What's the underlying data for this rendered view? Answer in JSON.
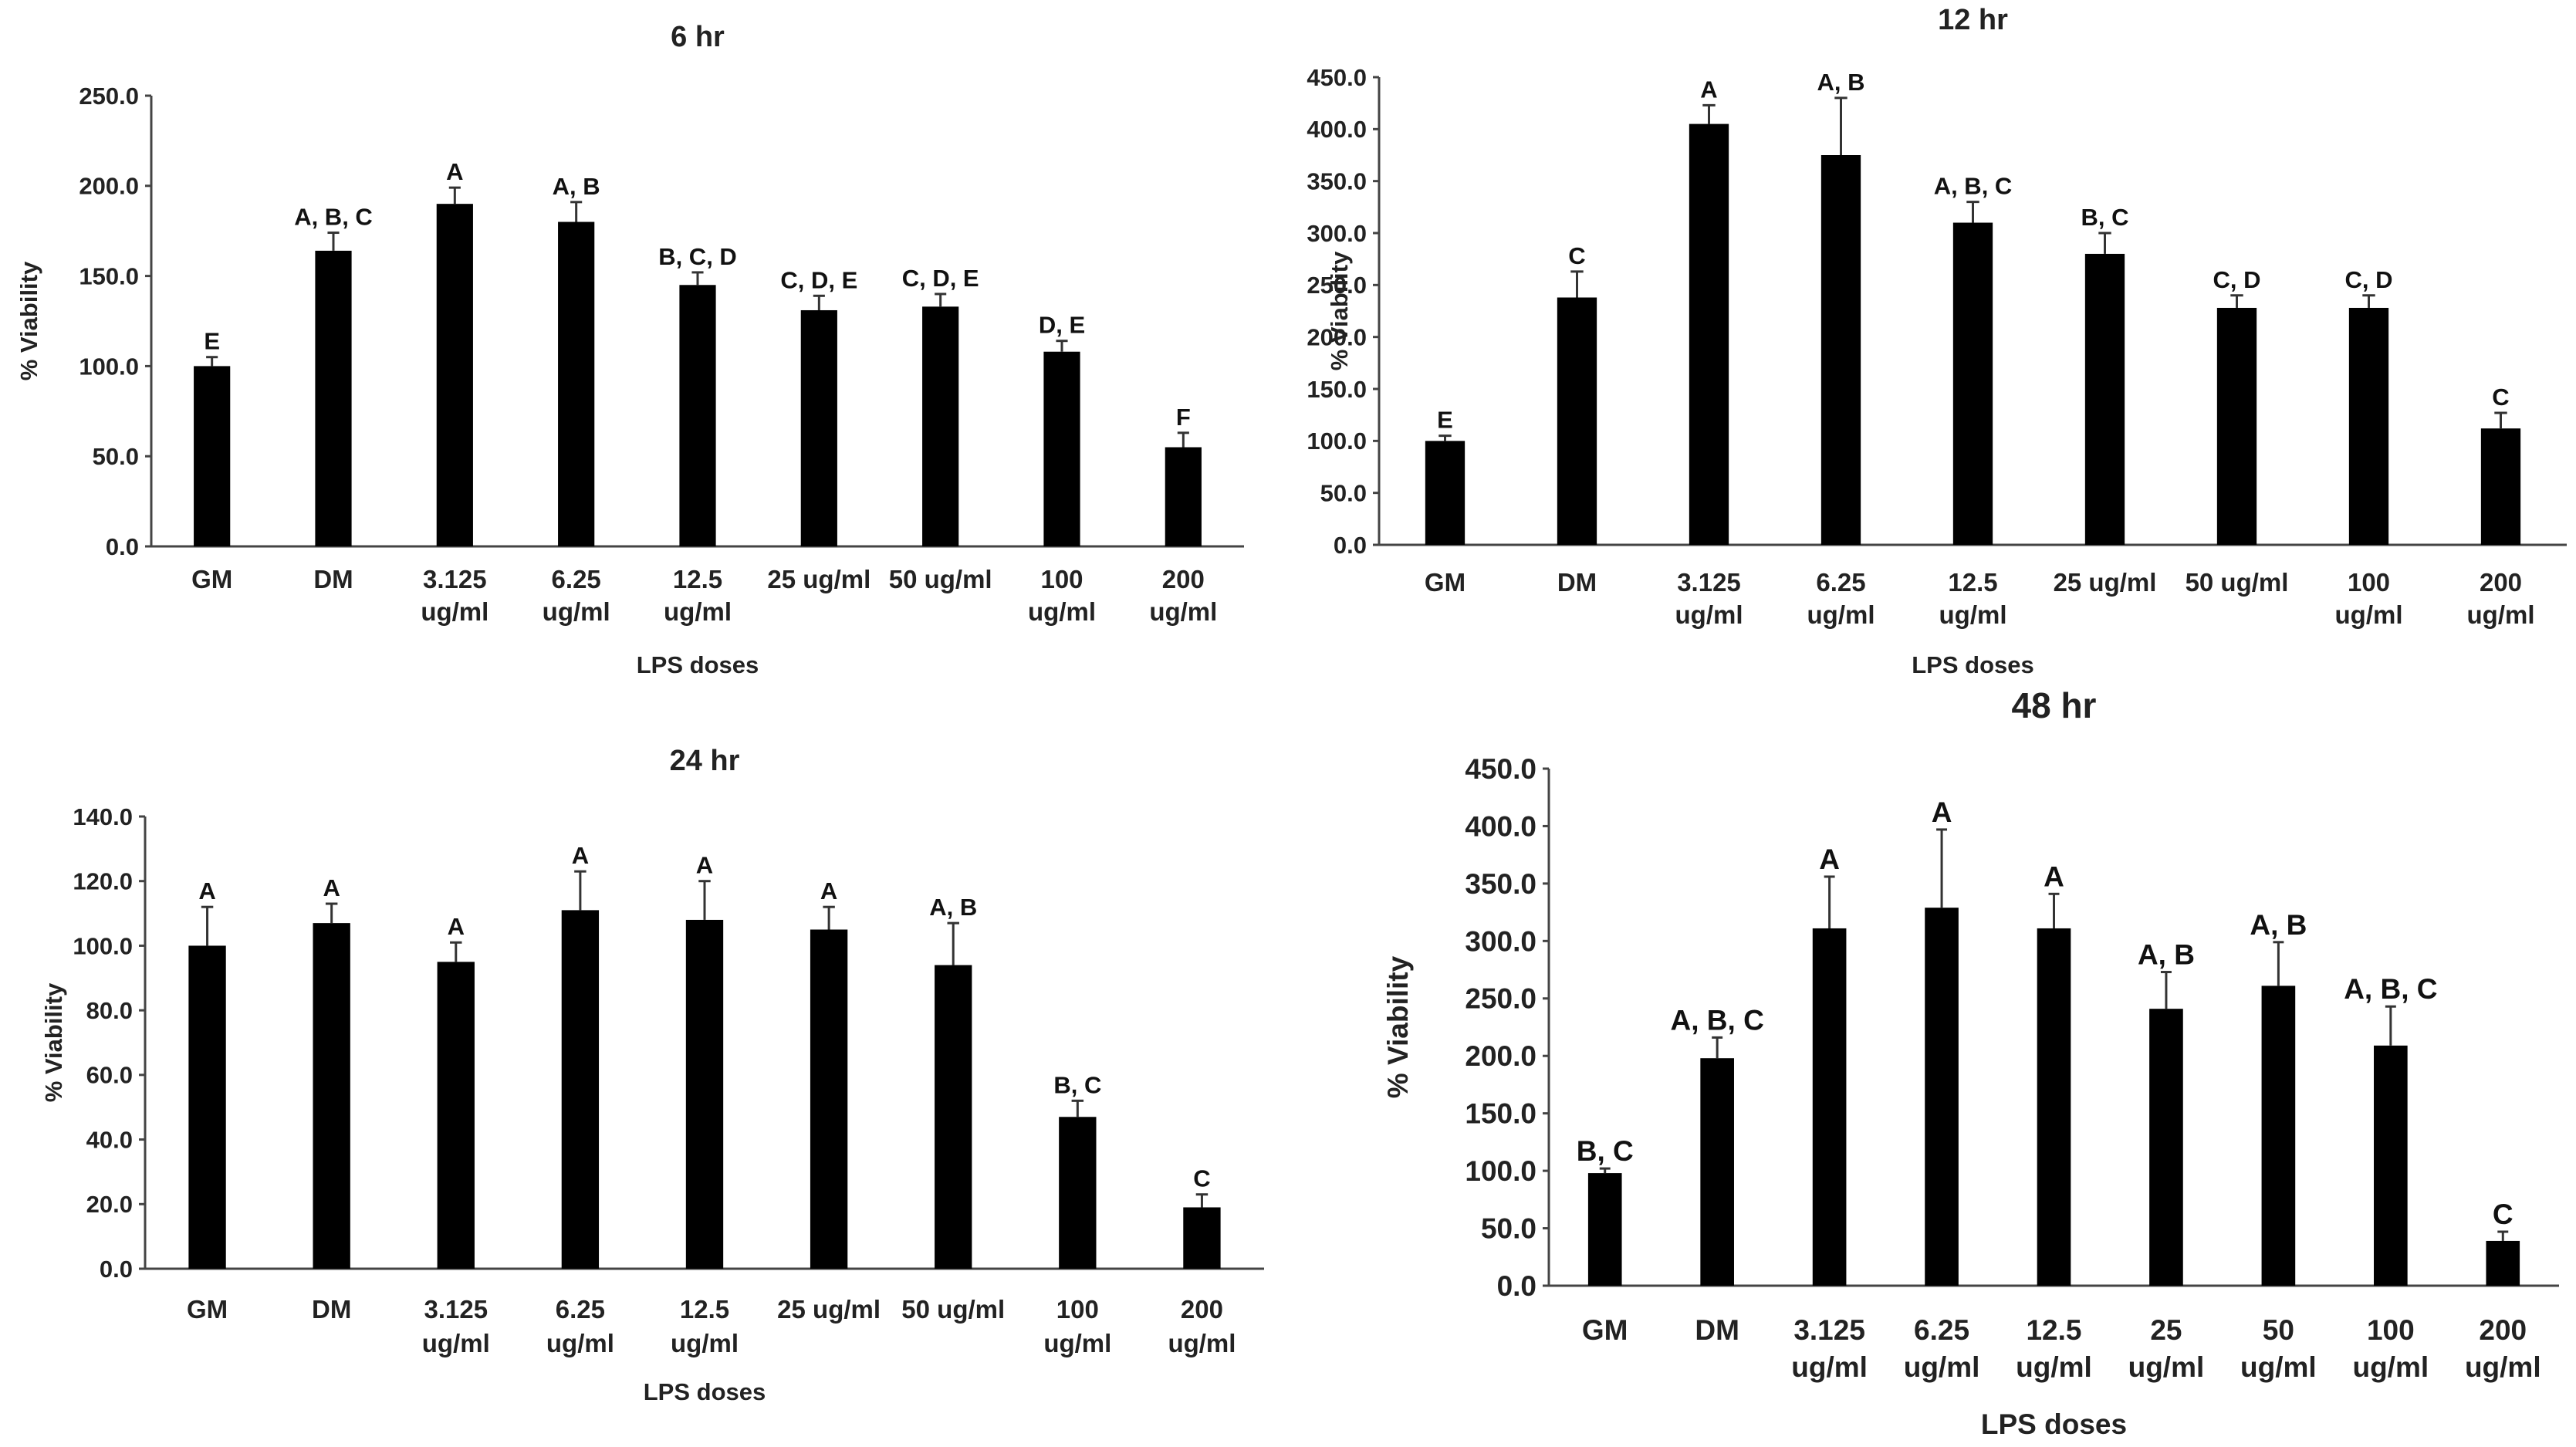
{
  "chart_data": [
    {
      "type": "bar",
      "title": "6 hr",
      "xlabel": "LPS doses",
      "ylabel": "% Viability",
      "ylim": [
        0,
        250
      ],
      "yticks": [
        "0.0",
        "50.0",
        "100.0",
        "150.0",
        "200.0",
        "250.0"
      ],
      "categories": [
        [
          "GM"
        ],
        [
          "DM"
        ],
        [
          "3.125",
          "ug/ml"
        ],
        [
          "6.25",
          "ug/ml"
        ],
        [
          "12.5",
          "ug/ml"
        ],
        [
          "25 ug/ml"
        ],
        [
          "50 ug/ml"
        ],
        [
          "100",
          "ug/ml"
        ],
        [
          "200",
          "ug/ml"
        ]
      ],
      "values": [
        100,
        164,
        190,
        180,
        145,
        131,
        133,
        108,
        55
      ],
      "errors": [
        5,
        10,
        9,
        11,
        7,
        8,
        7,
        6,
        8
      ],
      "significance": [
        "E",
        "A, B, C",
        "A",
        "A, B",
        "B, C, D",
        "C, D, E",
        "C, D, E",
        "D, E",
        "F"
      ]
    },
    {
      "type": "bar",
      "title": "12 hr",
      "xlabel": "LPS doses",
      "ylabel": "% Viability",
      "ylim": [
        0,
        450
      ],
      "yticks": [
        "0.0",
        "50.0",
        "100.0",
        "150.0",
        "200.0",
        "250.0",
        "300.0",
        "350.0",
        "400.0",
        "450.0"
      ],
      "categories": [
        [
          "GM"
        ],
        [
          "DM"
        ],
        [
          "3.125",
          "ug/ml"
        ],
        [
          "6.25",
          "ug/ml"
        ],
        [
          "12.5",
          "ug/ml"
        ],
        [
          "25 ug/ml"
        ],
        [
          "50 ug/ml"
        ],
        [
          "100",
          "ug/ml"
        ],
        [
          "200",
          "ug/ml"
        ]
      ],
      "values": [
        100,
        238,
        405,
        375,
        310,
        280,
        228,
        228,
        112
      ],
      "errors": [
        5,
        25,
        18,
        55,
        20,
        20,
        12,
        12,
        15
      ],
      "significance": [
        "E",
        "C",
        "A",
        "A, B",
        "A, B, C",
        "B, C",
        "C, D",
        "C, D",
        "C"
      ]
    },
    {
      "type": "bar",
      "title": "24 hr",
      "xlabel": "LPS doses",
      "ylabel": "% Viability",
      "ylim": [
        0,
        140
      ],
      "yticks": [
        "0.0",
        "20.0",
        "40.0",
        "60.0",
        "80.0",
        "100.0",
        "120.0",
        "140.0"
      ],
      "categories": [
        [
          "GM"
        ],
        [
          "DM"
        ],
        [
          "3.125",
          "ug/ml"
        ],
        [
          "6.25",
          "ug/ml"
        ],
        [
          "12.5",
          "ug/ml"
        ],
        [
          "25 ug/ml"
        ],
        [
          "50 ug/ml"
        ],
        [
          "100",
          "ug/ml"
        ],
        [
          "200",
          "ug/ml"
        ]
      ],
      "values": [
        100,
        107,
        95,
        111,
        108,
        105,
        94,
        47,
        19
      ],
      "errors": [
        12,
        6,
        6,
        12,
        12,
        7,
        13,
        5,
        4
      ],
      "significance": [
        "A",
        "A",
        "A",
        "A",
        "A",
        "A",
        "A, B",
        "B, C",
        "C"
      ]
    },
    {
      "type": "bar",
      "title": "48 hr",
      "xlabel": "LPS doses",
      "ylabel": "% Viability",
      "ylim": [
        0,
        450
      ],
      "yticks": [
        "0.0",
        "50.0",
        "100.0",
        "150.0",
        "200.0",
        "250.0",
        "300.0",
        "350.0",
        "400.0",
        "450.0"
      ],
      "categories": [
        [
          "GM"
        ],
        [
          "DM"
        ],
        [
          "3.125",
          "ug/ml"
        ],
        [
          "6.25",
          "ug/ml"
        ],
        [
          "12.5",
          "ug/ml"
        ],
        [
          "25",
          "ug/ml"
        ],
        [
          "50",
          "ug/ml"
        ],
        [
          "100",
          "ug/ml"
        ],
        [
          "200",
          "ug/ml"
        ]
      ],
      "values": [
        98,
        198,
        311,
        329,
        311,
        241,
        261,
        209,
        39
      ],
      "errors": [
        4,
        18,
        45,
        68,
        30,
        32,
        38,
        34,
        8
      ],
      "significance": [
        "B, C",
        "A, B, C",
        "A",
        "A",
        "A",
        "A, B",
        "A, B",
        "A, B, C",
        "C"
      ]
    }
  ]
}
